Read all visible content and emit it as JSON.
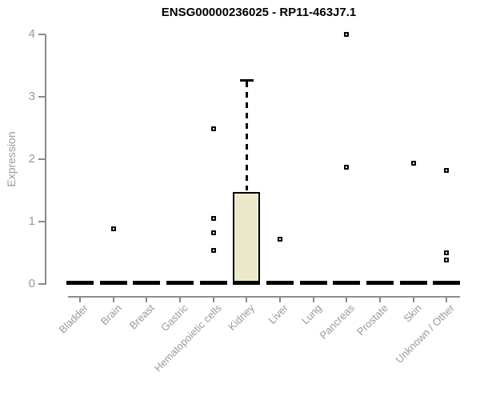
{
  "chart_data": {
    "type": "boxplot",
    "title": "ENSG00000236025 - RP11-463J7.1",
    "ylabel": "Expression",
    "ylim": [
      0,
      4
    ],
    "yticks": [
      "0",
      "1",
      "2",
      "3",
      "4"
    ],
    "grid": false,
    "legend": "none",
    "categories": [
      "Bladder",
      "Brain",
      "Breast",
      "Gastric",
      "Hematopoietic cells",
      "Kidney",
      "Liver",
      "Lung",
      "Pancreas",
      "Prostate",
      "Skin",
      "Unknown / Other"
    ],
    "boxes": [
      {
        "category": "Bladder",
        "median": 0,
        "q1": 0,
        "q3": 0,
        "whisker_low": 0,
        "whisker_high": 0,
        "outliers": []
      },
      {
        "category": "Brain",
        "median": 0,
        "q1": 0,
        "q3": 0,
        "whisker_low": 0,
        "whisker_high": 0,
        "outliers": [
          0.88
        ]
      },
      {
        "category": "Breast",
        "median": 0,
        "q1": 0,
        "q3": 0,
        "whisker_low": 0,
        "whisker_high": 0,
        "outliers": []
      },
      {
        "category": "Gastric",
        "median": 0,
        "q1": 0,
        "q3": 0,
        "whisker_low": 0,
        "whisker_high": 0,
        "outliers": []
      },
      {
        "category": "Hematopoietic cells",
        "median": 0,
        "q1": 0,
        "q3": 0,
        "whisker_low": 0,
        "whisker_high": 0,
        "outliers": [
          2.49,
          1.05,
          0.82,
          0.54
        ]
      },
      {
        "category": "Kidney",
        "median": 0,
        "q1": 0,
        "q3": 1.47,
        "whisker_low": 0,
        "whisker_high": 3.27,
        "outliers": []
      },
      {
        "category": "Liver",
        "median": 0,
        "q1": 0,
        "q3": 0,
        "whisker_low": 0,
        "whisker_high": 0,
        "outliers": [
          0.72
        ]
      },
      {
        "category": "Lung",
        "median": 0,
        "q1": 0,
        "q3": 0,
        "whisker_low": 0,
        "whisker_high": 0,
        "outliers": []
      },
      {
        "category": "Pancreas",
        "median": 0,
        "q1": 0,
        "q3": 0,
        "whisker_low": 0,
        "whisker_high": 0,
        "outliers": [
          4.01,
          1.88
        ]
      },
      {
        "category": "Prostate",
        "median": 0,
        "q1": 0,
        "q3": 0,
        "whisker_low": 0,
        "whisker_high": 0,
        "outliers": []
      },
      {
        "category": "Skin",
        "median": 0,
        "q1": 0,
        "q3": 0,
        "whisker_low": 0,
        "whisker_high": 0,
        "outliers": [
          1.94
        ]
      },
      {
        "category": "Unknown / Other",
        "median": 0,
        "q1": 0,
        "q3": 0,
        "whisker_low": 0,
        "whisker_high": 0,
        "outliers": [
          1.82,
          0.5,
          0.38
        ]
      }
    ],
    "colors": {
      "box_fill": "#ece8cc",
      "box_border": "#000000",
      "median_color": "#000000",
      "axis_line": "#8c8c8c",
      "tick_label": "#9a9a9a",
      "title_color": "#000000"
    }
  }
}
